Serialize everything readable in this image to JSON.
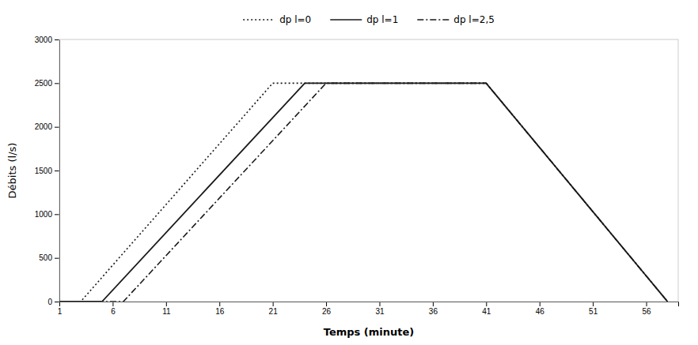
{
  "chart_data": {
    "type": "line",
    "x_label": "Temps (minute)",
    "y_label": "Débits (l/s)",
    "xlim": [
      1,
      59
    ],
    "ylim": [
      0,
      3000
    ],
    "xticks": [
      1,
      6,
      11,
      16,
      21,
      26,
      31,
      36,
      41,
      46,
      51,
      56
    ],
    "yticks": [
      0,
      500,
      1000,
      1500,
      2000,
      2500,
      3000
    ],
    "grid": false,
    "legend": "top",
    "color": "#1a1a1a",
    "series": [
      {
        "name": "dp l=0",
        "line_style": "dotted",
        "x": [
          1,
          3,
          21,
          41,
          58
        ],
        "values": [
          0,
          0,
          2500,
          2500,
          0
        ]
      },
      {
        "name": "dp l=1",
        "line_style": "solid",
        "x": [
          1,
          5,
          24,
          41,
          58
        ],
        "values": [
          0,
          0,
          2500,
          2500,
          0
        ]
      },
      {
        "name": "dp l=2,5",
        "line_style": "dashdot",
        "x": [
          1,
          7,
          26,
          41,
          58
        ],
        "values": [
          0,
          0,
          2500,
          2500,
          0
        ]
      }
    ]
  }
}
